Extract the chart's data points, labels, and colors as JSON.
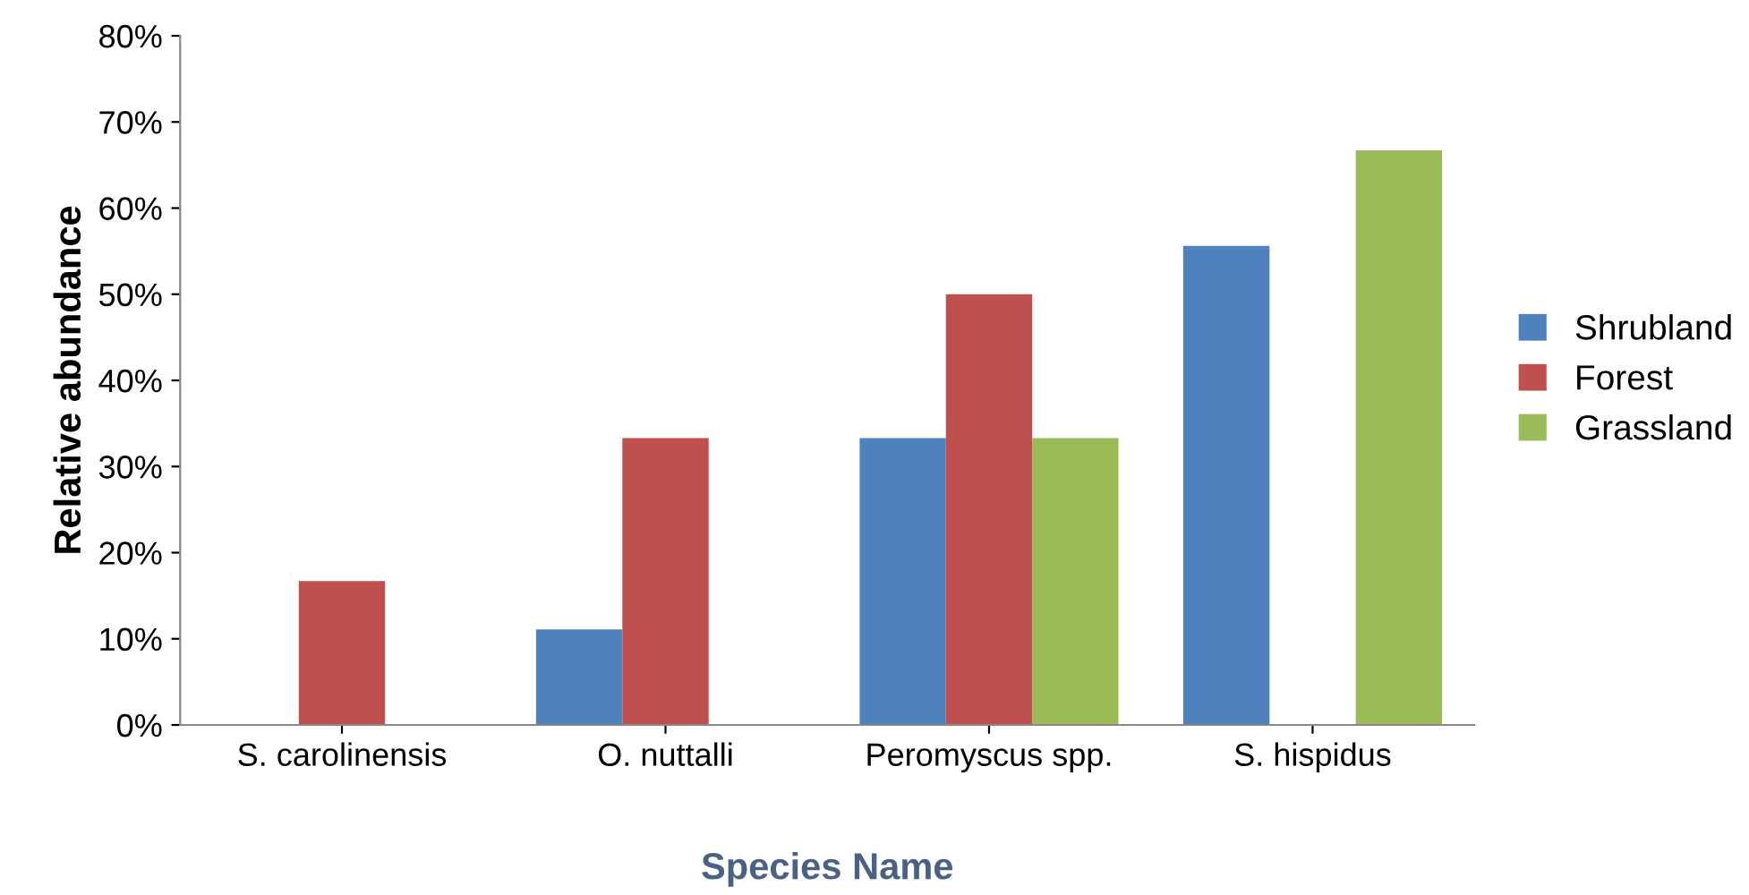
{
  "chart_data": {
    "type": "bar",
    "xlabel": "Species Name",
    "ylabel": "Relative abundance",
    "categories": [
      "S. carolinensis",
      "O. nuttalli",
      "Peromyscus spp.",
      "S. hispidus"
    ],
    "series": [
      {
        "name": "Shrubland",
        "color": "#4f81bd",
        "values": [
          null,
          11.1,
          33.3,
          55.6
        ]
      },
      {
        "name": "Forest",
        "color": "#c0504d",
        "values": [
          16.7,
          33.3,
          50.0,
          null
        ]
      },
      {
        "name": "Grassland",
        "color": "#9bbb59",
        "values": [
          null,
          null,
          33.3,
          66.7
        ]
      }
    ],
    "ylim": [
      0,
      80
    ],
    "yticks": [
      {
        "value": 0,
        "label": "0%"
      },
      {
        "value": 10,
        "label": "10%"
      },
      {
        "value": 20,
        "label": "20%"
      },
      {
        "value": 30,
        "label": "30%"
      },
      {
        "value": 40,
        "label": "40%"
      },
      {
        "value": 50,
        "label": "50%"
      },
      {
        "value": 60,
        "label": "60%"
      },
      {
        "value": 70,
        "label": "70%"
      },
      {
        "value": 80,
        "label": "80%"
      }
    ],
    "grid": false,
    "legend": "right"
  }
}
